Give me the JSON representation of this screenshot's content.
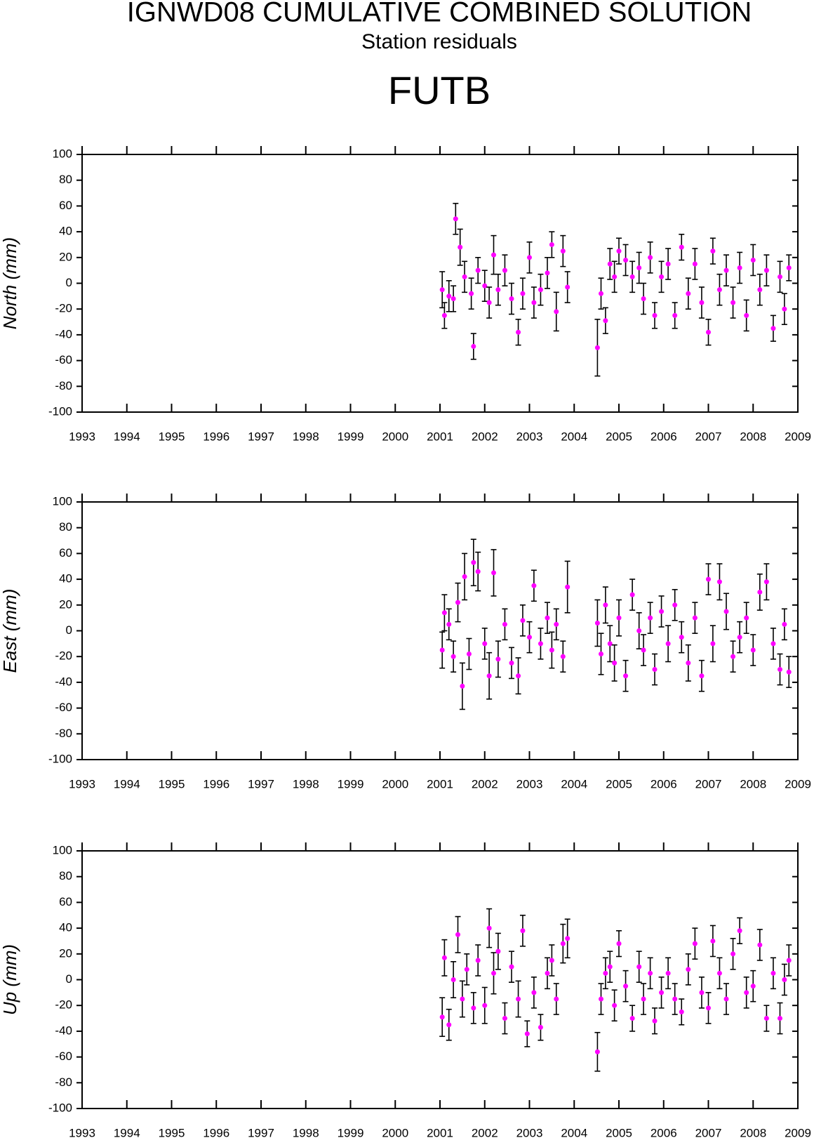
{
  "title": "IGNWD08 CUMULATIVE COMBINED SOLUTION",
  "subtitle": "Station residuals",
  "station": "FUTB",
  "chart_data": [
    {
      "type": "scatter",
      "ylabel": "North (mm)",
      "color": "#ff00ff",
      "xlim": [
        1993,
        2009
      ],
      "ylim": [
        -100,
        100
      ],
      "xticks": [
        1993,
        1994,
        1995,
        1996,
        1997,
        1998,
        1999,
        2000,
        2001,
        2002,
        2003,
        2004,
        2005,
        2006,
        2007,
        2008,
        2009
      ],
      "yticks": [
        -100,
        -80,
        -60,
        -40,
        -20,
        0,
        20,
        40,
        60,
        80,
        100
      ],
      "x": [
        2001.05,
        2001.1,
        2001.2,
        2001.3,
        2001.35,
        2001.45,
        2001.55,
        2001.7,
        2001.75,
        2001.85,
        2002.0,
        2002.1,
        2002.2,
        2002.3,
        2002.45,
        2002.6,
        2002.75,
        2002.85,
        2003.0,
        2003.1,
        2003.25,
        2003.4,
        2003.5,
        2003.6,
        2003.75,
        2003.85,
        2004.52,
        2004.6,
        2004.7,
        2004.8,
        2004.9,
        2005.0,
        2005.15,
        2005.3,
        2005.45,
        2005.55,
        2005.7,
        2005.8,
        2005.95,
        2006.1,
        2006.25,
        2006.4,
        2006.55,
        2006.7,
        2006.85,
        2007.0,
        2007.1,
        2007.25,
        2007.4,
        2007.55,
        2007.7,
        2007.85,
        2008.0,
        2008.15,
        2008.3,
        2008.45,
        2008.6,
        2008.7,
        2008.8
      ],
      "values": [
        -5,
        -25,
        -10,
        -12,
        50,
        28,
        5,
        -8,
        -49,
        10,
        -2,
        -15,
        22,
        -5,
        10,
        -12,
        -38,
        -8,
        20,
        -15,
        -5,
        8,
        30,
        -22,
        25,
        -3,
        -50,
        -8,
        -29,
        15,
        5,
        25,
        18,
        5,
        12,
        -12,
        20,
        -25,
        5,
        15,
        -25,
        28,
        -8,
        15,
        -15,
        -38,
        25,
        -5,
        10,
        -15,
        12,
        -25,
        18,
        -5,
        10,
        -35,
        5,
        -20,
        12
      ],
      "errors": [
        14,
        10,
        12,
        10,
        12,
        14,
        12,
        12,
        10,
        10,
        12,
        12,
        15,
        12,
        12,
        12,
        10,
        12,
        12,
        12,
        12,
        12,
        10,
        15,
        12,
        12,
        22,
        12,
        10,
        12,
        12,
        10,
        12,
        12,
        12,
        12,
        12,
        10,
        12,
        12,
        10,
        10,
        12,
        12,
        12,
        10,
        10,
        12,
        12,
        12,
        12,
        12,
        12,
        12,
        12,
        10,
        12,
        12,
        10
      ]
    },
    {
      "type": "scatter",
      "ylabel": "East (mm)",
      "color": "#ff00ff",
      "xlim": [
        1993,
        2009
      ],
      "ylim": [
        -100,
        100
      ],
      "xticks": [
        1993,
        1994,
        1995,
        1996,
        1997,
        1998,
        1999,
        2000,
        2001,
        2002,
        2003,
        2004,
        2005,
        2006,
        2007,
        2008,
        2009
      ],
      "yticks": [
        -100,
        -80,
        -60,
        -40,
        -20,
        0,
        20,
        40,
        60,
        80,
        100
      ],
      "x": [
        2001.05,
        2001.1,
        2001.2,
        2001.3,
        2001.4,
        2001.5,
        2001.55,
        2001.65,
        2001.75,
        2001.85,
        2002.0,
        2002.1,
        2002.2,
        2002.3,
        2002.45,
        2002.6,
        2002.75,
        2002.85,
        2003.0,
        2003.1,
        2003.25,
        2003.4,
        2003.5,
        2003.6,
        2003.75,
        2003.85,
        2004.52,
        2004.6,
        2004.7,
        2004.8,
        2004.9,
        2005.0,
        2005.15,
        2005.3,
        2005.45,
        2005.55,
        2005.7,
        2005.8,
        2005.95,
        2006.1,
        2006.25,
        2006.4,
        2006.55,
        2006.7,
        2006.85,
        2007.0,
        2007.1,
        2007.25,
        2007.4,
        2007.55,
        2007.7,
        2007.85,
        2008.0,
        2008.15,
        2008.3,
        2008.45,
        2008.6,
        2008.7,
        2008.8
      ],
      "values": [
        -15,
        14,
        5,
        -20,
        22,
        -43,
        42,
        -18,
        53,
        46,
        -10,
        -35,
        45,
        -22,
        5,
        -25,
        -35,
        8,
        -5,
        35,
        -10,
        10,
        -15,
        5,
        -20,
        34,
        6,
        -18,
        20,
        -10,
        -25,
        10,
        -35,
        28,
        0,
        -15,
        10,
        -30,
        15,
        -10,
        20,
        -5,
        -25,
        10,
        -35,
        40,
        -10,
        38,
        15,
        -20,
        -5,
        10,
        -15,
        30,
        38,
        -10,
        -30,
        5,
        -32
      ],
      "errors": [
        14,
        14,
        12,
        12,
        15,
        18,
        18,
        12,
        18,
        15,
        12,
        18,
        18,
        14,
        12,
        12,
        14,
        12,
        12,
        12,
        12,
        12,
        14,
        12,
        12,
        20,
        18,
        16,
        14,
        14,
        14,
        14,
        12,
        12,
        14,
        12,
        12,
        12,
        12,
        14,
        12,
        12,
        14,
        12,
        12,
        12,
        14,
        14,
        14,
        12,
        12,
        12,
        12,
        14,
        14,
        12,
        12,
        12,
        12
      ]
    },
    {
      "type": "scatter",
      "ylabel": "Up (mm)",
      "color": "#ff00ff",
      "xlim": [
        1993,
        2009
      ],
      "ylim": [
        -100,
        100
      ],
      "xticks": [
        1993,
        1994,
        1995,
        1996,
        1997,
        1998,
        1999,
        2000,
        2001,
        2002,
        2003,
        2004,
        2005,
        2006,
        2007,
        2008,
        2009
      ],
      "yticks": [
        -100,
        -80,
        -60,
        -40,
        -20,
        0,
        20,
        40,
        60,
        80,
        100
      ],
      "x": [
        2001.05,
        2001.1,
        2001.2,
        2001.3,
        2001.4,
        2001.5,
        2001.6,
        2001.75,
        2001.85,
        2002.0,
        2002.1,
        2002.2,
        2002.3,
        2002.45,
        2002.6,
        2002.75,
        2002.85,
        2002.95,
        2003.1,
        2003.25,
        2003.4,
        2003.5,
        2003.6,
        2003.75,
        2003.85,
        2004.52,
        2004.6,
        2004.7,
        2004.8,
        2004.9,
        2005.0,
        2005.15,
        2005.3,
        2005.45,
        2005.55,
        2005.7,
        2005.8,
        2005.95,
        2006.1,
        2006.25,
        2006.4,
        2006.55,
        2006.7,
        2006.85,
        2007.0,
        2007.1,
        2007.25,
        2007.4,
        2007.55,
        2007.7,
        2007.85,
        2008.0,
        2008.15,
        2008.3,
        2008.45,
        2008.6,
        2008.7,
        2008.8
      ],
      "values": [
        -29,
        17,
        -35,
        0,
        35,
        -15,
        8,
        -22,
        15,
        -20,
        40,
        5,
        22,
        -30,
        10,
        -15,
        38,
        -42,
        -10,
        -37,
        5,
        15,
        -15,
        28,
        32,
        -56,
        -15,
        5,
        10,
        -20,
        28,
        -5,
        -30,
        10,
        -15,
        5,
        -32,
        -10,
        5,
        -15,
        -25,
        8,
        28,
        -10,
        -22,
        30,
        5,
        -15,
        20,
        38,
        -10,
        -5,
        27,
        -30,
        5,
        -30,
        0,
        15
      ],
      "errors": [
        15,
        14,
        12,
        14,
        14,
        14,
        12,
        12,
        12,
        14,
        15,
        16,
        14,
        12,
        12,
        14,
        12,
        10,
        12,
        10,
        12,
        12,
        12,
        15,
        15,
        15,
        12,
        12,
        12,
        12,
        10,
        12,
        10,
        12,
        12,
        12,
        10,
        12,
        12,
        12,
        10,
        12,
        12,
        12,
        12,
        12,
        12,
        12,
        12,
        10,
        12,
        12,
        12,
        10,
        12,
        12,
        12,
        12
      ]
    }
  ]
}
